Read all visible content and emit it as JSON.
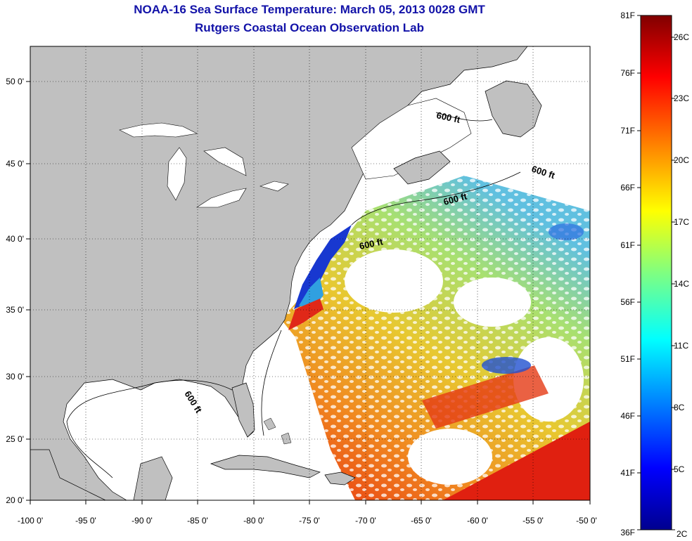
{
  "header": {
    "title": "NOAA-16 Sea Surface Temperature:  March 05, 2013 0028 GMT",
    "subtitle": "Rutgers Coastal Ocean Observation Lab"
  },
  "map": {
    "longitude_ticks": [
      "-100 0'",
      "-95 0'",
      "-90 0'",
      "-85 0'",
      "-80 0'",
      "-75 0'",
      "-70 0'",
      "-65 0'",
      "-60 0'",
      "-55 0'",
      "-50 0'"
    ],
    "latitude_ticks": [
      "50 0'",
      "45 0'",
      "40 0'",
      "35 0'",
      "30 0'",
      "25 0'",
      "20 0'"
    ],
    "depth_contour_labels": [
      "600 ft",
      "600 ft",
      "600 ft",
      "600 ft",
      "600 ft"
    ],
    "land_color": "#c0c0c0",
    "no_data_color": "#ffffff"
  },
  "colorbar": {
    "fahrenheit_labels": [
      "81F",
      "76F",
      "71F",
      "66F",
      "61F",
      "56F",
      "51F",
      "46F",
      "41F",
      "36F"
    ],
    "celsius_labels": [
      "26C",
      "23C",
      "20C",
      "17C",
      "14C",
      "11C",
      "8C",
      "5C",
      "2C"
    ],
    "colors": [
      "#00008f",
      "#0000ff",
      "#0080ff",
      "#00ffff",
      "#80ff80",
      "#ffff00",
      "#ff8000",
      "#ff0000",
      "#800000"
    ]
  }
}
